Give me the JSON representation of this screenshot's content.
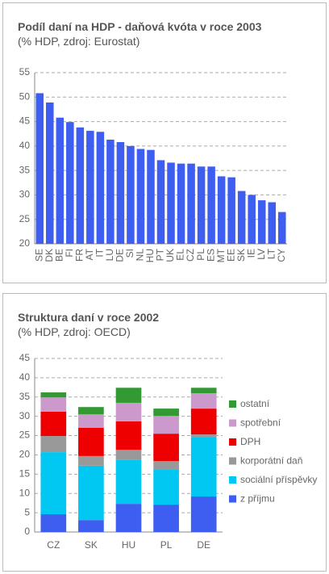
{
  "chart_data": [
    {
      "type": "bar",
      "title": "Podíl daní na HDP - daňová kvóta v roce 2003",
      "subtitle": "(% HDP, zdroj: Eurostat)",
      "categories": [
        "SE",
        "DK",
        "BE",
        "FI",
        "FR",
        "AT",
        "IT",
        "LU",
        "DE",
        "SI",
        "NL",
        "HU",
        "PT",
        "UK",
        "EL",
        "CZ",
        "PL",
        "ES",
        "MT",
        "EE",
        "SK",
        "IE",
        "LV",
        "LT",
        "CY"
      ],
      "values": [
        50.8,
        48.9,
        45.8,
        44.9,
        43.8,
        43.1,
        42.9,
        41.3,
        40.8,
        40.0,
        39.4,
        39.2,
        37.1,
        36.6,
        36.4,
        36.4,
        35.8,
        35.8,
        33.8,
        33.6,
        30.8,
        30.0,
        28.9,
        28.5,
        26.5
      ],
      "color": "#3d5ef0",
      "ylim": [
        20,
        55
      ],
      "yticks": [
        20,
        25,
        30,
        35,
        40,
        45,
        50,
        55
      ],
      "grid": true
    },
    {
      "type": "stacked_bar",
      "title": "Struktura daní v roce 2002",
      "subtitle": "(% HDP, zdroj: OECD)",
      "categories": [
        "CZ",
        "SK",
        "HU",
        "PL",
        "DE"
      ],
      "series": [
        {
          "name": "z příjmu",
          "color": "#3d5ef0",
          "values": [
            4.6,
            3.1,
            7.3,
            7.1,
            9.2
          ]
        },
        {
          "name": "sociální příspěvky",
          "color": "#00c8f2",
          "values": [
            16.1,
            14.1,
            11.5,
            9.2,
            15.3
          ]
        },
        {
          "name": "korporátní daň",
          "color": "#999999",
          "values": [
            4.2,
            2.5,
            2.5,
            2.1,
            0.8
          ]
        },
        {
          "name": "DPH",
          "color": "#ee0000",
          "values": [
            6.3,
            7.3,
            7.4,
            7.1,
            6.7
          ]
        },
        {
          "name": "spotřební",
          "color": "#cc99cc",
          "values": [
            3.7,
            3.5,
            4.8,
            4.6,
            4.0
          ]
        },
        {
          "name": "ostatní",
          "color": "#339933",
          "values": [
            1.3,
            1.9,
            3.9,
            1.9,
            1.4
          ]
        }
      ],
      "ylim": [
        0,
        45
      ],
      "yticks": [
        0,
        5,
        10,
        15,
        20,
        25,
        30,
        35,
        40,
        45
      ],
      "grid": true,
      "legend": "right"
    }
  ]
}
